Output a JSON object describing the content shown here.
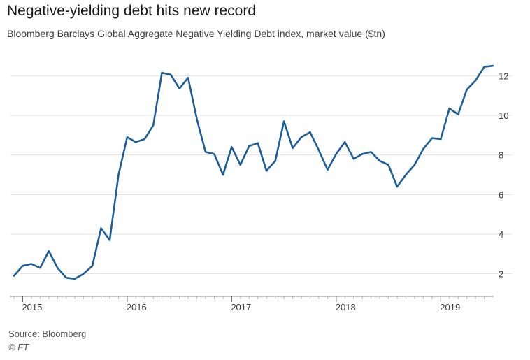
{
  "chart_data": {
    "type": "line",
    "title": "Negative-yielding debt hits new record",
    "subtitle": "Bloomberg Barclays Global Aggregate Negative Yielding Debt index, market value ($tn)",
    "xlabel": "",
    "ylabel": "",
    "x_range": [
      2014.917,
      2019.5
    ],
    "ylim": [
      1,
      13
    ],
    "y_ticks": [
      2,
      4,
      6,
      8,
      10,
      12
    ],
    "x_ticks": [
      "2015",
      "2016",
      "2017",
      "2018",
      "2019"
    ],
    "grid": "horizontal",
    "legend": "none",
    "series_color": "#1c5d9c",
    "series": [
      {
        "x": [
          2014.917,
          2015.0,
          2015.083,
          2015.167,
          2015.25,
          2015.333,
          2015.417,
          2015.5,
          2015.583,
          2015.667,
          2015.75,
          2015.833,
          2015.917,
          2016.0,
          2016.083,
          2016.167,
          2016.25,
          2016.333,
          2016.417,
          2016.5,
          2016.583,
          2016.667,
          2016.75,
          2016.833,
          2016.917,
          2017.0,
          2017.083,
          2017.167,
          2017.25,
          2017.333,
          2017.417,
          2017.5,
          2017.583,
          2017.667,
          2017.75,
          2017.833,
          2017.917,
          2018.0,
          2018.083,
          2018.167,
          2018.25,
          2018.333,
          2018.417,
          2018.5,
          2018.583,
          2018.667,
          2018.75,
          2018.833,
          2018.917,
          2019.0,
          2019.083,
          2019.167,
          2019.25,
          2019.333,
          2019.417,
          2019.5
        ],
        "values": [
          1.9,
          2.4,
          2.5,
          2.3,
          3.15,
          2.3,
          1.8,
          1.75,
          2.0,
          2.4,
          4.3,
          3.7,
          7.0,
          8.9,
          8.65,
          8.8,
          9.5,
          12.15,
          12.05,
          11.35,
          11.9,
          9.8,
          8.15,
          8.05,
          7.0,
          8.4,
          7.5,
          8.45,
          8.6,
          7.2,
          7.7,
          9.7,
          8.35,
          8.9,
          9.15,
          8.25,
          7.25,
          8.05,
          8.65,
          7.8,
          8.05,
          8.15,
          7.7,
          7.5,
          6.4,
          7.0,
          7.5,
          8.3,
          8.85,
          8.8,
          10.35,
          10.05,
          11.3,
          11.75,
          12.45,
          12.5
        ]
      }
    ]
  },
  "footer": {
    "source": "Source: Bloomberg",
    "credit": "© FT"
  }
}
